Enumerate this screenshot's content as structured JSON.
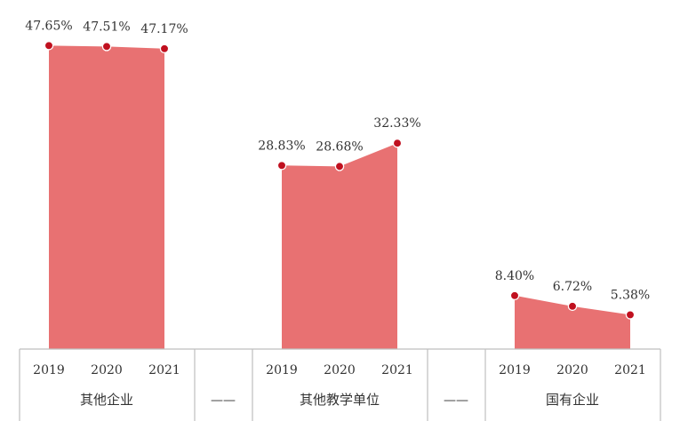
{
  "chart_data": {
    "type": "area",
    "title": "",
    "xlabel": "",
    "ylabel": "",
    "ylim": [
      0,
      50
    ],
    "grid": false,
    "legend": "none",
    "x": [
      "2019",
      "2020",
      "2021"
    ],
    "groups": [
      {
        "name": "其他企业",
        "values": [
          47.65,
          47.51,
          47.17
        ],
        "labels": [
          "47.65%",
          "47.51%",
          "47.17%"
        ]
      },
      {
        "name": "其他教学单位",
        "values": [
          28.83,
          28.68,
          32.33
        ],
        "labels": [
          "28.83%",
          "28.68%",
          "32.33%"
        ]
      },
      {
        "name": "国有企业",
        "values": [
          8.4,
          6.72,
          5.38
        ],
        "labels": [
          "8.40%",
          "6.72%",
          "5.38%"
        ]
      }
    ],
    "separator_label": "——",
    "colors": {
      "fill": "#e87172",
      "marker": "#c0101f",
      "marker_edge": "#ffffff",
      "axis": "#bfbfbf",
      "text": "#333333"
    }
  }
}
